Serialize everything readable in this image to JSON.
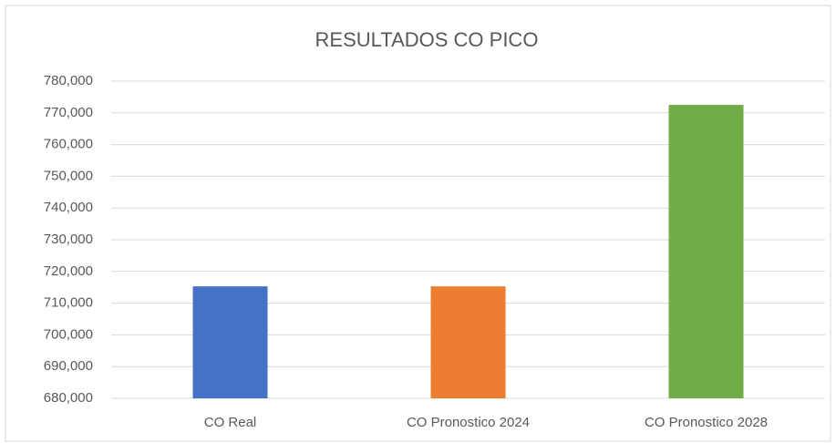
{
  "chart_data": {
    "type": "bar",
    "title": "RESULTADOS CO PICO",
    "categories": [
      "CO Real",
      "CO Pronostico 2024",
      "CO Pronostico 2028"
    ],
    "values": [
      715300,
      715300,
      772500
    ],
    "colors": [
      "#4472c4",
      "#ed7d31",
      "#70ad47"
    ],
    "ylim": [
      680000,
      780000
    ],
    "yticks": [
      {
        "value": 680000,
        "label": "680,000"
      },
      {
        "value": 690000,
        "label": "690,000"
      },
      {
        "value": 700000,
        "label": "700,000"
      },
      {
        "value": 710000,
        "label": "710,000"
      },
      {
        "value": 720000,
        "label": "720,000"
      },
      {
        "value": 730000,
        "label": "730,000"
      },
      {
        "value": 740000,
        "label": "740,000"
      },
      {
        "value": 750000,
        "label": "750,000"
      },
      {
        "value": 760000,
        "label": "760,000"
      },
      {
        "value": 770000,
        "label": "770,000"
      },
      {
        "value": 780000,
        "label": "780,000"
      }
    ],
    "grid": true
  }
}
